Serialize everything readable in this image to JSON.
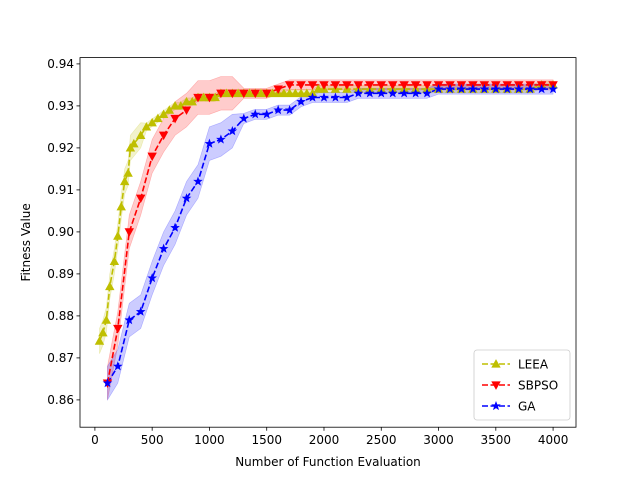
{
  "chart_data": {
    "type": "line",
    "title": "",
    "xlabel": "Number of Function Evaluation",
    "ylabel": "Fitness Value",
    "xlim": [
      -130,
      4200
    ],
    "ylim": [
      0.8535,
      0.9415
    ],
    "xticks": [
      0,
      500,
      1000,
      1500,
      2000,
      2500,
      3000,
      3500,
      4000
    ],
    "yticks": [
      0.86,
      0.87,
      0.88,
      0.89,
      0.9,
      0.91,
      0.92,
      0.93,
      0.94
    ],
    "ytick_labels": [
      "0.86",
      "0.87",
      "0.88",
      "0.89",
      "0.90",
      "0.91",
      "0.92",
      "0.93",
      "0.94"
    ],
    "grid": false,
    "legend_position": "lower-right",
    "series": [
      {
        "name": "LEEA",
        "color": "#bfbf00",
        "marker": "triangle-up",
        "x": [
          40,
          70,
          100,
          130,
          170,
          200,
          230,
          260,
          290,
          310,
          340,
          400,
          450,
          500,
          550,
          600,
          650,
          700,
          750,
          800,
          850,
          900,
          950,
          1000,
          1050,
          1100,
          1150,
          1200,
          1250,
          1300,
          1350,
          1400,
          1450,
          1500,
          1550,
          1600,
          1650,
          1700,
          1750,
          1800,
          1850,
          1900,
          1950,
          2000,
          2100,
          2200,
          2300,
          2400,
          2500,
          2600,
          2700,
          2800,
          2900,
          3000,
          3100,
          3200,
          3300,
          3400,
          3500,
          3600,
          3700,
          3800,
          3900,
          4000
        ],
        "y": [
          0.874,
          0.876,
          0.879,
          0.887,
          0.893,
          0.899,
          0.906,
          0.912,
          0.914,
          0.92,
          0.921,
          0.923,
          0.925,
          0.926,
          0.927,
          0.928,
          0.929,
          0.93,
          0.93,
          0.931,
          0.931,
          0.932,
          0.932,
          0.932,
          0.932,
          0.933,
          0.933,
          0.933,
          0.933,
          0.933,
          0.933,
          0.933,
          0.933,
          0.933,
          0.933,
          0.933,
          0.933,
          0.933,
          0.933,
          0.933,
          0.933,
          0.933,
          0.934,
          0.934,
          0.934,
          0.934,
          0.934,
          0.934,
          0.934,
          0.934,
          0.934,
          0.934,
          0.934,
          0.934,
          0.934,
          0.934,
          0.934,
          0.934,
          0.934,
          0.934,
          0.934,
          0.934,
          0.935,
          0.935
        ],
        "band": 0.003
      },
      {
        "name": "SBPSO",
        "color": "#ff0000",
        "marker": "triangle-down",
        "x": [
          110,
          200,
          300,
          400,
          500,
          600,
          700,
          800,
          900,
          1000,
          1100,
          1200,
          1300,
          1400,
          1500,
          1600,
          1700,
          1800,
          1900,
          2000,
          2100,
          2200,
          2300,
          2400,
          2500,
          2600,
          2700,
          2800,
          2900,
          3000,
          3100,
          3200,
          3300,
          3400,
          3500,
          3600,
          3700,
          3800,
          3900,
          4000
        ],
        "y": [
          0.864,
          0.877,
          0.9,
          0.908,
          0.918,
          0.923,
          0.927,
          0.929,
          0.932,
          0.932,
          0.933,
          0.933,
          0.933,
          0.933,
          0.933,
          0.934,
          0.935,
          0.935,
          0.935,
          0.935,
          0.935,
          0.935,
          0.935,
          0.935,
          0.935,
          0.935,
          0.935,
          0.935,
          0.935,
          0.935,
          0.935,
          0.935,
          0.935,
          0.935,
          0.935,
          0.935,
          0.935,
          0.935,
          0.935,
          0.935
        ],
        "band": 0.004
      },
      {
        "name": "GA",
        "color": "#0000ff",
        "marker": "star",
        "x": [
          110,
          200,
          300,
          400,
          500,
          600,
          700,
          800,
          900,
          1000,
          1100,
          1200,
          1300,
          1400,
          1500,
          1600,
          1700,
          1800,
          1900,
          2000,
          2100,
          2200,
          2300,
          2400,
          2500,
          2600,
          2700,
          2800,
          2900,
          3000,
          3100,
          3200,
          3300,
          3400,
          3500,
          3600,
          3700,
          3800,
          3900,
          4000
        ],
        "y": [
          0.864,
          0.868,
          0.879,
          0.881,
          0.889,
          0.896,
          0.901,
          0.908,
          0.912,
          0.921,
          0.922,
          0.924,
          0.927,
          0.928,
          0.928,
          0.929,
          0.929,
          0.931,
          0.932,
          0.932,
          0.932,
          0.932,
          0.933,
          0.933,
          0.933,
          0.933,
          0.933,
          0.933,
          0.933,
          0.934,
          0.934,
          0.934,
          0.934,
          0.934,
          0.934,
          0.934,
          0.934,
          0.934,
          0.934,
          0.934
        ],
        "band": 0.004
      }
    ]
  }
}
